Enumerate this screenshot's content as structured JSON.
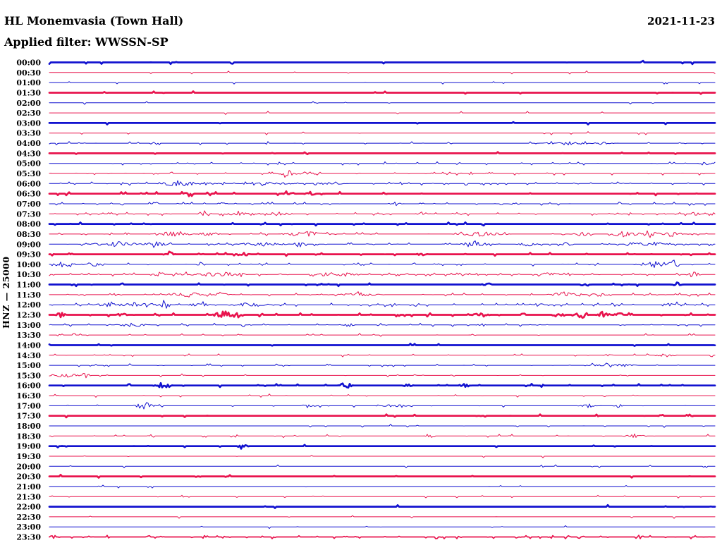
{
  "header": {
    "station_title": "HL Monemvasia (Town Hall)",
    "date": "2021-11-23",
    "filter_label": "Applied filter: WWSSN-SP"
  },
  "axis": {
    "channel_label": "HNZ — 25000"
  },
  "colors": {
    "trace_blue": "#1111cf",
    "trace_red": "#e8134d",
    "text": "#000000",
    "background": "#ffffff"
  },
  "chart_data": {
    "type": "line",
    "subtype": "helicorder-seismogram",
    "title": "HL Monemvasia (Town Hall)",
    "date": "2021-11-23",
    "filter": "WWSSN-SP",
    "channel": "HNZ",
    "scale": 25000,
    "row_duration_minutes": 30,
    "legend": "48 half-hour traces, alternating blue/red; weight=bold marks high-amplitude continuous noise; events = [position_fraction, half_width_fraction, amplitude_px]",
    "rows": [
      {
        "label": "00:00",
        "color": "blue",
        "weight": "bold",
        "noise": 0.08,
        "events": [
          [
            0.055,
            0.004,
            2
          ]
        ]
      },
      {
        "label": "00:30",
        "color": "red",
        "weight": "thin",
        "noise": 0.06,
        "events": []
      },
      {
        "label": "01:00",
        "color": "blue",
        "weight": "thin",
        "noise": 0.06,
        "events": []
      },
      {
        "label": "01:30",
        "color": "red",
        "weight": "bold",
        "noise": 0.06,
        "events": []
      },
      {
        "label": "02:00",
        "color": "blue",
        "weight": "thin",
        "noise": 0.05,
        "events": []
      },
      {
        "label": "02:30",
        "color": "red",
        "weight": "thin",
        "noise": 0.05,
        "events": []
      },
      {
        "label": "03:00",
        "color": "blue",
        "weight": "bold",
        "noise": 0.05,
        "events": []
      },
      {
        "label": "03:30",
        "color": "red",
        "weight": "thin",
        "noise": 0.08,
        "events": []
      },
      {
        "label": "04:00",
        "color": "blue",
        "weight": "thin",
        "noise": 0.25,
        "events": [
          [
            0.78,
            0.045,
            3
          ],
          [
            0.83,
            0.025,
            2
          ]
        ]
      },
      {
        "label": "04:30",
        "color": "red",
        "weight": "bold",
        "noise": 0.08,
        "events": []
      },
      {
        "label": "05:00",
        "color": "blue",
        "weight": "thin",
        "noise": 0.2,
        "events": [
          [
            0.985,
            0.012,
            4
          ]
        ]
      },
      {
        "label": "05:30",
        "color": "red",
        "weight": "thin",
        "noise": 0.3,
        "events": [
          [
            0.357,
            0.025,
            4
          ],
          [
            0.388,
            0.018,
            3
          ]
        ]
      },
      {
        "label": "06:00",
        "color": "blue",
        "weight": "thin",
        "noise": 0.5,
        "events": [
          [
            0.195,
            0.035,
            5
          ],
          [
            0.24,
            0.02,
            3
          ],
          [
            0.33,
            0.05,
            2
          ],
          [
            0.42,
            0.03,
            2
          ]
        ]
      },
      {
        "label": "06:30",
        "color": "red",
        "weight": "bold",
        "noise": 0.2,
        "events": [
          [
            0.21,
            0.01,
            3
          ],
          [
            0.36,
            0.012,
            3
          ],
          [
            0.392,
            0.01,
            3
          ]
        ]
      },
      {
        "label": "07:00",
        "color": "blue",
        "weight": "thin",
        "noise": 0.3,
        "events": [
          [
            0.26,
            0.01,
            2
          ],
          [
            0.52,
            0.012,
            3
          ],
          [
            0.7,
            0.01,
            2
          ]
        ]
      },
      {
        "label": "07:30",
        "color": "red",
        "weight": "thin",
        "noise": 0.45,
        "events": [
          [
            0.233,
            0.013,
            5
          ],
          [
            0.29,
            0.035,
            3
          ],
          [
            0.345,
            0.025,
            3
          ],
          [
            0.56,
            0.012,
            3
          ],
          [
            0.97,
            0.012,
            3
          ]
        ]
      },
      {
        "label": "08:00",
        "color": "blue",
        "weight": "bold",
        "noise": 0.12,
        "events": []
      },
      {
        "label": "08:30",
        "color": "red",
        "weight": "thin",
        "noise": 0.5,
        "events": [
          [
            0.185,
            0.035,
            4
          ],
          [
            0.24,
            0.02,
            4
          ],
          [
            0.385,
            0.045,
            4
          ],
          [
            0.65,
            0.045,
            4
          ],
          [
            0.8,
            0.02,
            3
          ],
          [
            0.865,
            0.025,
            5
          ],
          [
            0.9,
            0.018,
            6
          ],
          [
            0.935,
            0.02,
            4
          ]
        ]
      },
      {
        "label": "09:00",
        "color": "blue",
        "weight": "thin",
        "noise": 0.5,
        "events": [
          [
            0.1,
            0.045,
            4
          ],
          [
            0.16,
            0.025,
            4
          ],
          [
            0.32,
            0.045,
            3
          ],
          [
            0.376,
            0.01,
            6
          ],
          [
            0.64,
            0.03,
            4
          ],
          [
            0.72,
            0.02,
            3
          ],
          [
            0.778,
            0.01,
            5
          ],
          [
            0.9,
            0.04,
            3
          ]
        ]
      },
      {
        "label": "09:30",
        "color": "red",
        "weight": "bold",
        "noise": 0.2,
        "events": [
          [
            0.18,
            0.01,
            4
          ],
          [
            0.29,
            0.012,
            4
          ],
          [
            0.56,
            0.01,
            2
          ]
        ]
      },
      {
        "label": "10:00",
        "color": "blue",
        "weight": "thin",
        "noise": 0.35,
        "events": [
          [
            0.024,
            0.02,
            6
          ],
          [
            0.065,
            0.025,
            3
          ],
          [
            0.228,
            0.01,
            4
          ],
          [
            0.91,
            0.035,
            5
          ],
          [
            0.94,
            0.01,
            8
          ]
        ]
      },
      {
        "label": "10:30",
        "color": "red",
        "weight": "thin",
        "noise": 0.5,
        "events": [
          [
            0.165,
            0.012,
            4
          ],
          [
            0.205,
            0.012,
            4
          ],
          [
            0.25,
            0.05,
            4
          ],
          [
            0.43,
            0.045,
            4
          ],
          [
            0.62,
            0.012,
            3
          ],
          [
            0.75,
            0.02,
            3
          ],
          [
            0.968,
            0.015,
            5
          ]
        ]
      },
      {
        "label": "11:00",
        "color": "blue",
        "weight": "bold",
        "noise": 0.15,
        "events": [
          [
            0.657,
            0.009,
            4
          ],
          [
            0.805,
            0.009,
            4
          ],
          [
            0.943,
            0.009,
            3
          ]
        ]
      },
      {
        "label": "11:30",
        "color": "red",
        "weight": "thin",
        "noise": 0.4,
        "events": [
          [
            0.205,
            0.04,
            4
          ],
          [
            0.255,
            0.02,
            4
          ],
          [
            0.465,
            0.04,
            3
          ],
          [
            0.775,
            0.03,
            4
          ],
          [
            0.825,
            0.02,
            3
          ]
        ]
      },
      {
        "label": "12:00",
        "color": "blue",
        "weight": "thin",
        "noise": 0.5,
        "events": [
          [
            0.09,
            0.03,
            3
          ],
          [
            0.13,
            0.05,
            4
          ],
          [
            0.175,
            0.01,
            6
          ],
          [
            0.225,
            0.02,
            3
          ],
          [
            0.3,
            0.04,
            3
          ],
          [
            0.515,
            0.012,
            3
          ],
          [
            0.73,
            0.012,
            3
          ],
          [
            0.937,
            0.012,
            5
          ]
        ]
      },
      {
        "label": "12:30",
        "color": "red",
        "weight": "bold",
        "noise": 0.3,
        "events": [
          [
            0.016,
            0.01,
            4
          ],
          [
            0.109,
            0.009,
            5
          ],
          [
            0.262,
            0.018,
            6
          ],
          [
            0.284,
            0.01,
            6
          ],
          [
            0.649,
            0.015,
            4
          ],
          [
            0.765,
            0.012,
            5
          ],
          [
            0.8,
            0.012,
            5
          ],
          [
            0.832,
            0.012,
            5
          ],
          [
            0.855,
            0.009,
            6
          ]
        ]
      },
      {
        "label": "13:00",
        "color": "blue",
        "weight": "thin",
        "noise": 0.3,
        "events": [
          [
            0.125,
            0.03,
            3
          ],
          [
            0.45,
            0.012,
            3
          ],
          [
            0.65,
            0.009,
            2
          ]
        ]
      },
      {
        "label": "13:30",
        "color": "red",
        "weight": "thin",
        "noise": 0.25,
        "events": []
      },
      {
        "label": "14:00",
        "color": "blue",
        "weight": "bold",
        "noise": 0.08,
        "events": []
      },
      {
        "label": "14:30",
        "color": "red",
        "weight": "thin",
        "noise": 0.15,
        "events": [
          [
            0.84,
            0.009,
            2
          ],
          [
            0.925,
            0.02,
            3
          ]
        ]
      },
      {
        "label": "15:00",
        "color": "blue",
        "weight": "thin",
        "noise": 0.2,
        "events": [
          [
            0.845,
            0.04,
            4
          ]
        ]
      },
      {
        "label": "15:30",
        "color": "red",
        "weight": "thin",
        "noise": 0.15,
        "events": [
          [
            0.025,
            0.035,
            3
          ],
          [
            0.053,
            0.01,
            5
          ]
        ]
      },
      {
        "label": "16:00",
        "color": "blue",
        "weight": "bold",
        "noise": 0.2,
        "events": [
          [
            0.17,
            0.015,
            5
          ],
          [
            0.445,
            0.012,
            5
          ],
          [
            0.54,
            0.009,
            4
          ],
          [
            0.625,
            0.009,
            3
          ]
        ]
      },
      {
        "label": "16:30",
        "color": "red",
        "weight": "thin",
        "noise": 0.15,
        "events": [
          [
            0.835,
            0.006,
            2
          ]
        ]
      },
      {
        "label": "17:00",
        "color": "blue",
        "weight": "thin",
        "noise": 0.2,
        "events": [
          [
            0.143,
            0.018,
            6
          ],
          [
            0.39,
            0.012,
            4
          ],
          [
            0.52,
            0.03,
            2
          ],
          [
            0.81,
            0.02,
            3
          ],
          [
            0.855,
            0.009,
            3
          ]
        ]
      },
      {
        "label": "17:30",
        "color": "red",
        "weight": "bold",
        "noise": 0.12,
        "events": [
          [
            0.92,
            0.006,
            2
          ]
        ]
      },
      {
        "label": "18:00",
        "color": "blue",
        "weight": "thin",
        "noise": 0.08,
        "events": []
      },
      {
        "label": "18:30",
        "color": "red",
        "weight": "thin",
        "noise": 0.2,
        "events": [
          [
            0.572,
            0.009,
            5
          ],
          [
            0.879,
            0.02,
            3
          ]
        ]
      },
      {
        "label": "19:00",
        "color": "blue",
        "weight": "bold",
        "noise": 0.1,
        "events": [
          [
            0.291,
            0.009,
            5
          ]
        ]
      },
      {
        "label": "19:30",
        "color": "red",
        "weight": "thin",
        "noise": 0.06,
        "events": []
      },
      {
        "label": "20:00",
        "color": "blue",
        "weight": "thin",
        "noise": 0.06,
        "events": []
      },
      {
        "label": "20:30",
        "color": "red",
        "weight": "bold",
        "noise": 0.06,
        "events": []
      },
      {
        "label": "21:00",
        "color": "blue",
        "weight": "thin",
        "noise": 0.06,
        "events": []
      },
      {
        "label": "21:30",
        "color": "red",
        "weight": "thin",
        "noise": 0.1,
        "events": []
      },
      {
        "label": "22:00",
        "color": "blue",
        "weight": "bold",
        "noise": 0.06,
        "events": []
      },
      {
        "label": "22:30",
        "color": "red",
        "weight": "thin",
        "noise": 0.06,
        "events": []
      },
      {
        "label": "23:00",
        "color": "blue",
        "weight": "thin",
        "noise": 0.06,
        "events": []
      },
      {
        "label": "23:30",
        "color": "red",
        "weight": "medium",
        "noise": 0.5,
        "events": []
      }
    ]
  }
}
